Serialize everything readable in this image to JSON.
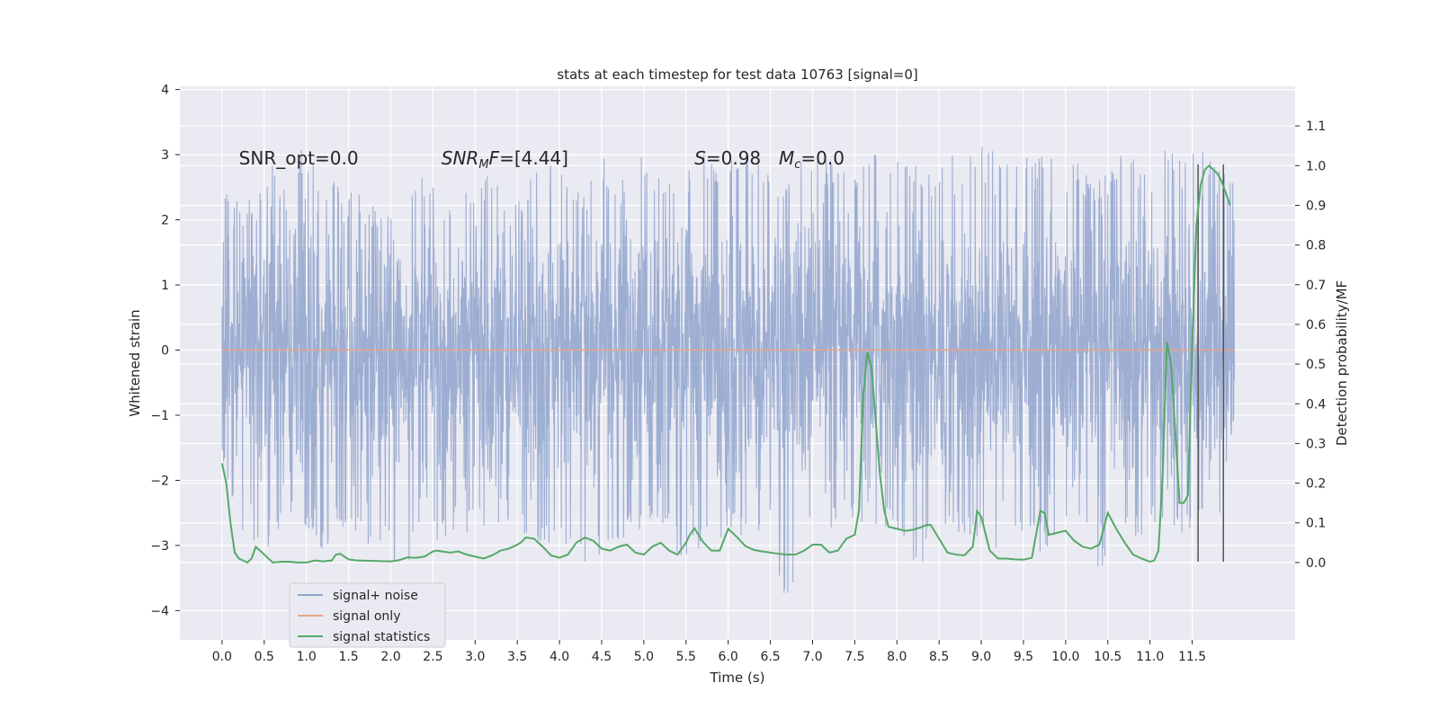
{
  "chart_data": {
    "type": "line",
    "title": "stats at each timestep for test data 10763 [signal=0]",
    "xlabel": "Time (s)",
    "ylabel": "Whitened strain",
    "ylabel_right": "Detection probability/MF",
    "xlim": [
      -0.5,
      12.72
    ],
    "ylim": [
      -4.45,
      4.05
    ],
    "ylim_right": [
      -0.195,
      1.2
    ],
    "x_ticks": [
      0.0,
      0.5,
      1.0,
      1.5,
      2.0,
      2.5,
      3.0,
      3.5,
      4.0,
      4.5,
      5.0,
      5.5,
      6.0,
      6.5,
      7.0,
      7.5,
      8.0,
      8.5,
      9.0,
      9.5,
      10.0,
      10.5,
      11.0,
      11.5
    ],
    "x_tick_labels": [
      "0.0",
      "0.5",
      "1.0",
      "1.5",
      "2.0",
      "2.5",
      "3.0",
      "3.5",
      "4.0",
      "4.5",
      "5.0",
      "5.5",
      "6.0",
      "6.5",
      "7.0",
      "7.5",
      "8.0",
      "8.5",
      "9.0",
      "9.5",
      "10.0",
      "10.5",
      "11.0",
      "11.5"
    ],
    "y_ticks": [
      -4,
      -3,
      -2,
      -1,
      0,
      1,
      2,
      3,
      4
    ],
    "y_tick_labels": [
      "−4",
      "−3",
      "−2",
      "−1",
      "0",
      "1",
      "2",
      "3",
      "4"
    ],
    "y_ticks_right": [
      0.0,
      0.1,
      0.2,
      0.3,
      0.4,
      0.5,
      0.6,
      0.7,
      0.8,
      0.9,
      1.0,
      1.1
    ],
    "y_tick_labels_right": [
      "0.0",
      "0.1",
      "0.2",
      "0.3",
      "0.4",
      "0.5",
      "0.6",
      "0.7",
      "0.8",
      "0.9",
      "1.0",
      "1.1"
    ],
    "grid": true,
    "legend_position": "bottom-left",
    "annotations": [
      {
        "text": "SNR_opt=0.0",
        "x": 0.2,
        "y": 2.85
      },
      {
        "text": "SNR_MF=[4.44]",
        "x": 2.6,
        "y": 2.85
      },
      {
        "text": "S=0.98",
        "x": 5.6,
        "y": 2.85
      },
      {
        "text": "M_c=0.0",
        "x": 6.6,
        "y": 2.85
      }
    ],
    "series": [
      {
        "name": "signal+ noise",
        "axis": "left",
        "color": "#8fa3cc",
        "x_range": [
          0.0,
          12.0
        ],
        "envelope_upper": [
          2.6,
          2.3,
          2.5,
          2.9,
          2.4,
          3.3,
          2.5,
          2.7,
          2.5,
          2.2,
          2.4,
          2.6,
          2.8,
          2.5,
          2.4,
          2.6,
          2.7,
          2.5,
          2.4,
          2.8,
          3.0,
          2.6,
          2.5,
          3.0,
          2.7,
          3.0,
          2.9,
          2.6,
          2.8,
          3.2,
          2.7,
          3.0,
          3.1,
          2.8,
          2.6,
          3.2,
          3.0,
          2.9,
          2.6,
          3.0,
          3.1,
          3.2,
          2.9,
          2.7,
          3.0,
          3.0,
          3.3,
          2.8,
          3.2,
          3.0,
          3.2,
          3.3,
          2.7,
          2.6,
          3.0,
          3.1,
          2.7,
          3.2,
          3.0,
          3.1,
          2.8,
          2.6
        ],
        "envelope_lower": [
          -1.7,
          -2.8,
          -3.1,
          -3.0,
          -2.5,
          -2.8,
          -3.2,
          -2.7,
          -2.9,
          -3.2,
          -3.1,
          -3.6,
          -2.9,
          -3.0,
          -2.8,
          -2.8,
          -2.9,
          -2.6,
          -2.8,
          -3.0,
          -3.2,
          -3.0,
          -3.3,
          -3.1,
          -3.0,
          -2.8,
          -2.7,
          -2.8,
          -3.5,
          -2.9,
          -3.0,
          -2.8,
          -3.0,
          -2.7,
          -4.1,
          -3.0,
          -2.9,
          -2.8,
          -2.6,
          -2.7,
          -2.9,
          -3.1,
          -3.4,
          -3.0,
          -2.7,
          -3.0,
          -2.8,
          -3.3,
          -2.9,
          -3.1,
          -3.2,
          -2.9,
          -3.0,
          -3.5,
          -2.8,
          -3.0,
          -2.7,
          -2.9,
          -3.0,
          -2.6,
          -3.0,
          -1.0
        ]
      },
      {
        "name": "signal only",
        "axis": "left",
        "color": "#e8a488",
        "x": [
          0.0,
          12.0
        ],
        "y": [
          0.0,
          0.0
        ]
      },
      {
        "name": "signal statistics",
        "axis": "right",
        "color": "#55a868",
        "x": [
          0.0,
          0.05,
          0.1,
          0.15,
          0.2,
          0.3,
          0.35,
          0.4,
          0.5,
          0.6,
          0.7,
          0.8,
          0.9,
          1.0,
          1.1,
          1.2,
          1.3,
          1.35,
          1.4,
          1.5,
          1.6,
          1.8,
          2.0,
          2.1,
          2.2,
          2.3,
          2.4,
          2.5,
          2.55,
          2.6,
          2.7,
          2.8,
          2.9,
          3.0,
          3.1,
          3.2,
          3.3,
          3.4,
          3.5,
          3.55,
          3.6,
          3.7,
          3.8,
          3.9,
          4.0,
          4.1,
          4.2,
          4.3,
          4.4,
          4.5,
          4.6,
          4.7,
          4.8,
          4.9,
          5.0,
          5.1,
          5.2,
          5.3,
          5.4,
          5.5,
          5.55,
          5.6,
          5.7,
          5.8,
          5.9,
          6.0,
          6.1,
          6.2,
          6.3,
          6.4,
          6.5,
          6.6,
          6.7,
          6.8,
          6.9,
          7.0,
          7.1,
          7.2,
          7.3,
          7.4,
          7.45,
          7.5,
          7.55,
          7.6,
          7.65,
          7.7,
          7.75,
          7.8,
          7.85,
          7.9,
          8.0,
          8.1,
          8.2,
          8.3,
          8.35,
          8.4,
          8.5,
          8.6,
          8.7,
          8.8,
          8.9,
          8.95,
          9.0,
          9.1,
          9.2,
          9.3,
          9.4,
          9.5,
          9.6,
          9.7,
          9.75,
          9.8,
          9.9,
          10.0,
          10.1,
          10.2,
          10.3,
          10.4,
          10.45,
          10.5,
          10.6,
          10.7,
          10.8,
          10.9,
          11.0,
          11.05,
          11.1,
          11.15,
          11.2,
          11.25,
          11.3,
          11.35,
          11.4,
          11.45,
          11.5,
          11.55,
          11.6,
          11.65,
          11.7,
          11.75,
          11.8,
          11.85,
          11.9,
          11.95
        ],
        "y": [
          0.25,
          0.2,
          0.1,
          0.025,
          0.01,
          0.0,
          0.01,
          0.04,
          0.02,
          0.0,
          0.002,
          0.002,
          0.0,
          0.0,
          0.005,
          0.003,
          0.005,
          0.02,
          0.022,
          0.008,
          0.005,
          0.004,
          0.003,
          0.006,
          0.013,
          0.012,
          0.015,
          0.028,
          0.03,
          0.028,
          0.025,
          0.028,
          0.02,
          0.015,
          0.01,
          0.018,
          0.03,
          0.035,
          0.045,
          0.052,
          0.063,
          0.06,
          0.04,
          0.018,
          0.012,
          0.02,
          0.05,
          0.063,
          0.055,
          0.035,
          0.03,
          0.04,
          0.045,
          0.025,
          0.02,
          0.04,
          0.05,
          0.03,
          0.02,
          0.05,
          0.072,
          0.086,
          0.052,
          0.03,
          0.03,
          0.085,
          0.065,
          0.042,
          0.032,
          0.028,
          0.025,
          0.022,
          0.02,
          0.02,
          0.03,
          0.045,
          0.045,
          0.025,
          0.03,
          0.06,
          0.065,
          0.07,
          0.13,
          0.42,
          0.53,
          0.49,
          0.35,
          0.22,
          0.13,
          0.09,
          0.085,
          0.08,
          0.083,
          0.09,
          0.095,
          0.095,
          0.06,
          0.025,
          0.02,
          0.018,
          0.04,
          0.13,
          0.115,
          0.03,
          0.01,
          0.01,
          0.008,
          0.007,
          0.012,
          0.13,
          0.125,
          0.07,
          0.075,
          0.08,
          0.055,
          0.04,
          0.035,
          0.045,
          0.085,
          0.125,
          0.085,
          0.05,
          0.02,
          0.01,
          0.002,
          0.005,
          0.03,
          0.22,
          0.555,
          0.5,
          0.33,
          0.15,
          0.15,
          0.17,
          0.55,
          0.85,
          0.95,
          0.99,
          1.0,
          0.99,
          0.98,
          0.96,
          0.93,
          0.9
        ]
      }
    ],
    "vertical_lines": [
      {
        "x": 11.57,
        "y_range": [
          -3.25,
          2.85
        ]
      },
      {
        "x": 11.87,
        "y_range": [
          -3.25,
          2.85
        ]
      }
    ]
  }
}
